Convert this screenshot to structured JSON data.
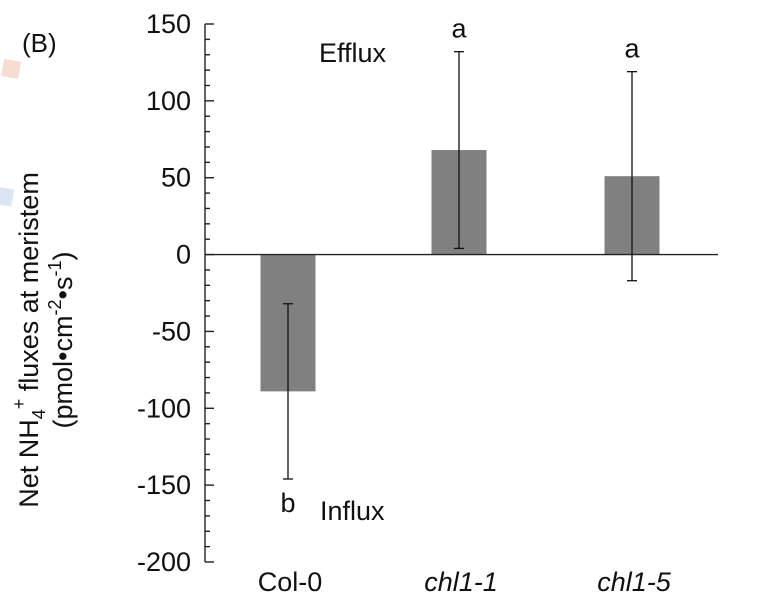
{
  "chart_data": {
    "type": "bar",
    "panel_label": "(B)",
    "ylabel": {
      "line1_prefix": "Net NH",
      "line1_sub": "4",
      "line1_sup": "+",
      "line1_suffix": " fluxes at meristem",
      "line2_prefix": "(pmol•cm",
      "line2_sup1": "-2",
      "line2_mid": "•s",
      "line2_sup2": "-1",
      "line2_suffix": ")"
    },
    "ylim": [
      -200,
      150
    ],
    "yticks": [
      150,
      100,
      50,
      0,
      -50,
      -100,
      -150,
      -200
    ],
    "categories": [
      "Col-0",
      "chl1-1",
      "chl1-5"
    ],
    "category_italic": [
      false,
      true,
      true
    ],
    "values": [
      -89,
      68,
      51
    ],
    "error": [
      57,
      64,
      68
    ],
    "bar_color": "#808080",
    "significance": [
      "b",
      "a",
      "a"
    ],
    "annotations": {
      "efflux": "Efflux",
      "influx": "Influx"
    },
    "grid": false,
    "legend": "none"
  }
}
